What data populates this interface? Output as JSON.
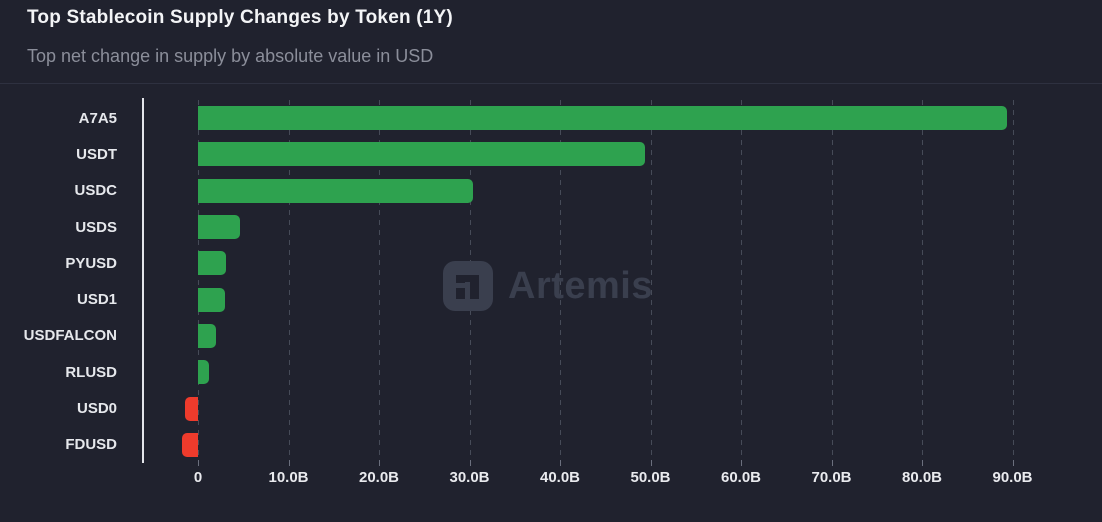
{
  "header": {
    "title": "Top Stablecoin Supply Changes by Token (1Y)",
    "subtitle": "Top net change in supply by absolute value in USD"
  },
  "watermark": {
    "text": "Artemis",
    "logo": "artemis-logo"
  },
  "chart_data": {
    "type": "bar",
    "orientation": "horizontal",
    "title": "Top Stablecoin Supply Changes by Token (1Y)",
    "subtitle": "Top net change in supply by absolute value in USD",
    "categories": [
      "A7A5",
      "USDT",
      "USDC",
      "USDS",
      "PYUSD",
      "USD1",
      "USDFALCON",
      "RLUSD",
      "USD0",
      "FDUSD"
    ],
    "values_billions_usd": [
      89.4,
      49.4,
      30.4,
      4.6,
      3.1,
      3.0,
      2.0,
      1.2,
      -1.4,
      -1.8
    ],
    "x_tick_values": [
      0,
      10,
      20,
      30,
      40,
      50,
      60,
      70,
      80,
      90
    ],
    "x_tick_labels": [
      "0",
      "10.0B",
      "20.0B",
      "30.0B",
      "40.0B",
      "50.0B",
      "60.0B",
      "70.0B",
      "80.0B",
      "90.0B"
    ],
    "xlim_billions": [
      -6,
      98
    ],
    "grid": "vertical-dashed",
    "legend": "none",
    "colors": {
      "positive": "#2ea24f",
      "negative": "#ee3b2c",
      "background": "#20222e",
      "axis_line": "#e3e5ea",
      "gridline": "#464b58"
    }
  }
}
